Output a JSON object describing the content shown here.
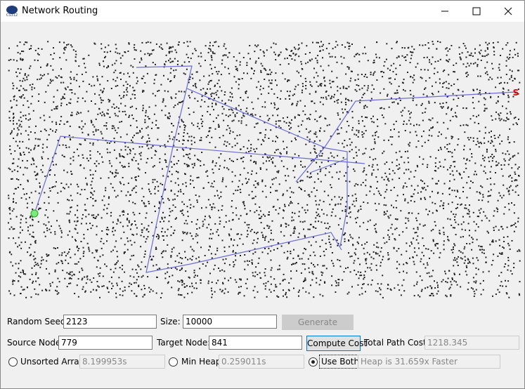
{
  "window": {
    "title": "Network Routing"
  },
  "controls": {
    "random_seed_label": "Random Seed:",
    "random_seed": "2123",
    "size_label": "Size:",
    "size": "10000",
    "generate_button": "Generate",
    "source_node_label": "Source Node:",
    "source_node": "779",
    "target_node_label": "Target Node:",
    "target_node": "841",
    "compute_button": "Compute Cost",
    "total_path_cost_label": "Total Path Cost:",
    "total_path_cost": "1218.345",
    "unsorted_array_label": "Unsorted Array",
    "unsorted_array_time": "8.199953s",
    "min_heap_label": "Min Heap",
    "min_heap_time": "0.259011s",
    "use_both_label": "Use Both",
    "comparison": "Heap is 31.659x Faster"
  },
  "graph": {
    "target_marker": "S"
  }
}
